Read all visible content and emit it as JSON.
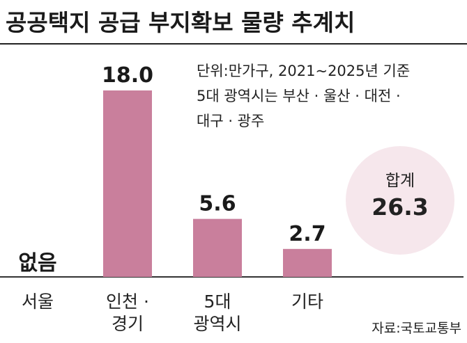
{
  "title": "공공택지 공급 부지확보 물량 추계치",
  "note": {
    "lines": [
      "단위:만가구, 2021~2025년 기준",
      "5대 광역시는 부산 · 울산 · 대전 ·",
      "대구 · 광주"
    ]
  },
  "source": "자료:국토교통부",
  "total": {
    "label": "합계",
    "value": "26.3"
  },
  "colors": {
    "bar": "#c97f9c",
    "circle": "#f6e7ec",
    "axis": "#333333"
  },
  "chart_data": {
    "type": "bar",
    "categories": [
      [
        "서울"
      ],
      [
        "인천 ·",
        "경기"
      ],
      [
        "5대",
        "광역시"
      ],
      [
        "기타"
      ]
    ],
    "values": [
      0,
      18.0,
      5.6,
      2.7
    ],
    "data_labels": [
      "없음",
      "18.0",
      "5.6",
      "2.7"
    ],
    "ylim": [
      0,
      18.0
    ]
  }
}
